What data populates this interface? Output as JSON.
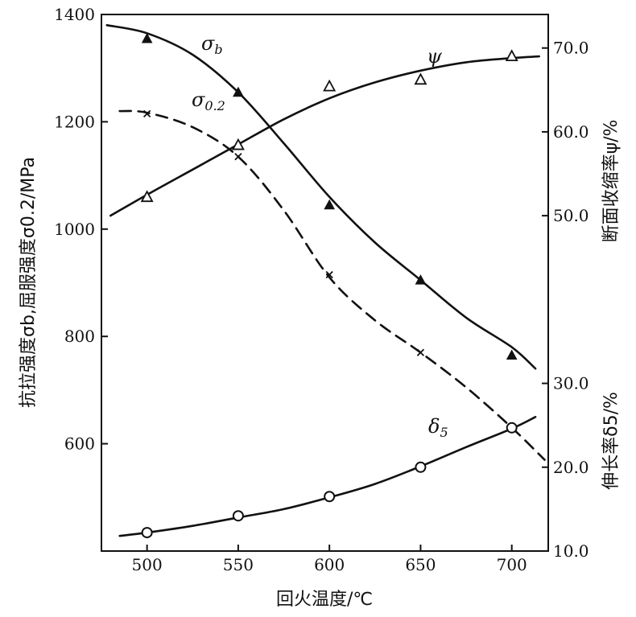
{
  "chart_data": {
    "type": "line",
    "x": {
      "label": "回火温度/℃",
      "range": [
        475,
        720
      ],
      "ticks": [
        500,
        550,
        600,
        650,
        700
      ],
      "tick_labels": [
        "500",
        "550",
        "600",
        "650",
        "700"
      ]
    },
    "y_left": {
      "label": "抗拉强度σb,屈服强度σ0.2/MPa",
      "range": [
        400,
        1400
      ],
      "ticks": [
        600,
        800,
        1000,
        1200,
        1400
      ],
      "tick_labels": [
        "600",
        "800",
        "1000",
        "1200",
        "1400"
      ]
    },
    "y_right": {
      "label_psi": "断面收缩率ψ/%",
      "label_delta": "伸长率δ5/%",
      "range": [
        10,
        74
      ],
      "ticks": [
        10,
        20,
        30,
        50,
        60,
        70
      ],
      "tick_labels": [
        "10.0",
        "20.0",
        "30.0",
        "50.0",
        "60.0",
        "70.0"
      ]
    },
    "series": [
      {
        "name": "σb",
        "label": "σb",
        "axis": "left",
        "style": "solid",
        "marker": "filled-triangle",
        "points": [
          [
            500,
            1355
          ],
          [
            550,
            1255
          ],
          [
            600,
            1045
          ],
          [
            650,
            905
          ],
          [
            700,
            765
          ]
        ],
        "curve": [
          [
            478,
            1380
          ],
          [
            500,
            1365
          ],
          [
            525,
            1325
          ],
          [
            550,
            1255
          ],
          [
            575,
            1160
          ],
          [
            600,
            1060
          ],
          [
            625,
            975
          ],
          [
            650,
            905
          ],
          [
            675,
            835
          ],
          [
            700,
            780
          ],
          [
            713,
            740
          ]
        ]
      },
      {
        "name": "σ0.2",
        "label": "σ0.2",
        "axis": "left",
        "style": "dashed",
        "marker": "cross",
        "points": [
          [
            500,
            1215
          ],
          [
            550,
            1135
          ],
          [
            600,
            915
          ],
          [
            650,
            770
          ]
        ],
        "curve": [
          [
            485,
            1220
          ],
          [
            500,
            1217
          ],
          [
            525,
            1190
          ],
          [
            550,
            1135
          ],
          [
            575,
            1035
          ],
          [
            600,
            910
          ],
          [
            625,
            830
          ],
          [
            650,
            770
          ],
          [
            675,
            705
          ],
          [
            700,
            630
          ],
          [
            718,
            570
          ]
        ]
      },
      {
        "name": "ψ",
        "label": "ψ",
        "axis": "right",
        "style": "solid",
        "marker": "open-triangle",
        "points": [
          [
            500,
            52.2
          ],
          [
            550,
            58.4
          ],
          [
            600,
            65.4
          ],
          [
            650,
            66.2
          ],
          [
            700,
            69.0
          ]
        ],
        "curve": [
          [
            480,
            50.0
          ],
          [
            500,
            52.5
          ],
          [
            525,
            55.5
          ],
          [
            550,
            58.5
          ],
          [
            575,
            61.5
          ],
          [
            600,
            64.0
          ],
          [
            625,
            65.9
          ],
          [
            650,
            67.3
          ],
          [
            675,
            68.3
          ],
          [
            700,
            68.8
          ],
          [
            715,
            69.0
          ]
        ]
      },
      {
        "name": "δ5",
        "label": "δ5",
        "axis": "right",
        "style": "solid",
        "marker": "open-circle",
        "points": [
          [
            500,
            12.2
          ],
          [
            550,
            14.2
          ],
          [
            600,
            16.5
          ],
          [
            650,
            20.0
          ],
          [
            700,
            24.7
          ]
        ],
        "curve": [
          [
            485,
            11.8
          ],
          [
            500,
            12.2
          ],
          [
            525,
            13.0
          ],
          [
            550,
            14.0
          ],
          [
            575,
            15.0
          ],
          [
            600,
            16.4
          ],
          [
            625,
            18.0
          ],
          [
            650,
            20.1
          ],
          [
            675,
            22.4
          ],
          [
            700,
            24.6
          ],
          [
            713,
            26.0
          ]
        ]
      }
    ]
  }
}
